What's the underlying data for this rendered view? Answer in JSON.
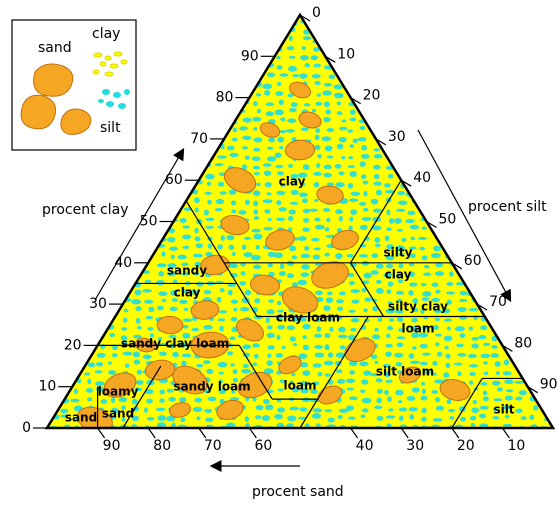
{
  "legend": {
    "items": [
      "sand",
      "clay",
      "silt"
    ]
  },
  "axes": {
    "clay": {
      "title": "procent clay",
      "ticks": [
        "0",
        "10",
        "20",
        "30",
        "40",
        "50",
        "60",
        "70",
        "80",
        "90"
      ]
    },
    "silt": {
      "title": "procent silt",
      "ticks": [
        "0",
        "10",
        "20",
        "30",
        "40",
        "50",
        "60",
        "70",
        "80",
        "90"
      ]
    },
    "sand": {
      "title": "procent sand",
      "ticks": [
        "90",
        "80",
        "70",
        "60",
        "40",
        "30",
        "20",
        "10"
      ]
    }
  },
  "regions": [
    {
      "lines": [
        "clay"
      ]
    },
    {
      "lines": [
        "silty",
        "clay"
      ]
    },
    {
      "lines": [
        "sandy",
        "clay"
      ]
    },
    {
      "lines": [
        "clay loam"
      ]
    },
    {
      "lines": [
        "silty clay",
        "loam"
      ]
    },
    {
      "lines": [
        "sandy clay loam"
      ]
    },
    {
      "lines": [
        "loam"
      ]
    },
    {
      "lines": [
        "silt loam"
      ]
    },
    {
      "lines": [
        "silt"
      ]
    },
    {
      "lines": [
        "sandy loam"
      ]
    },
    {
      "lines": [
        "loamy",
        "sand"
      ]
    },
    {
      "lines": [
        "sand"
      ]
    }
  ]
}
